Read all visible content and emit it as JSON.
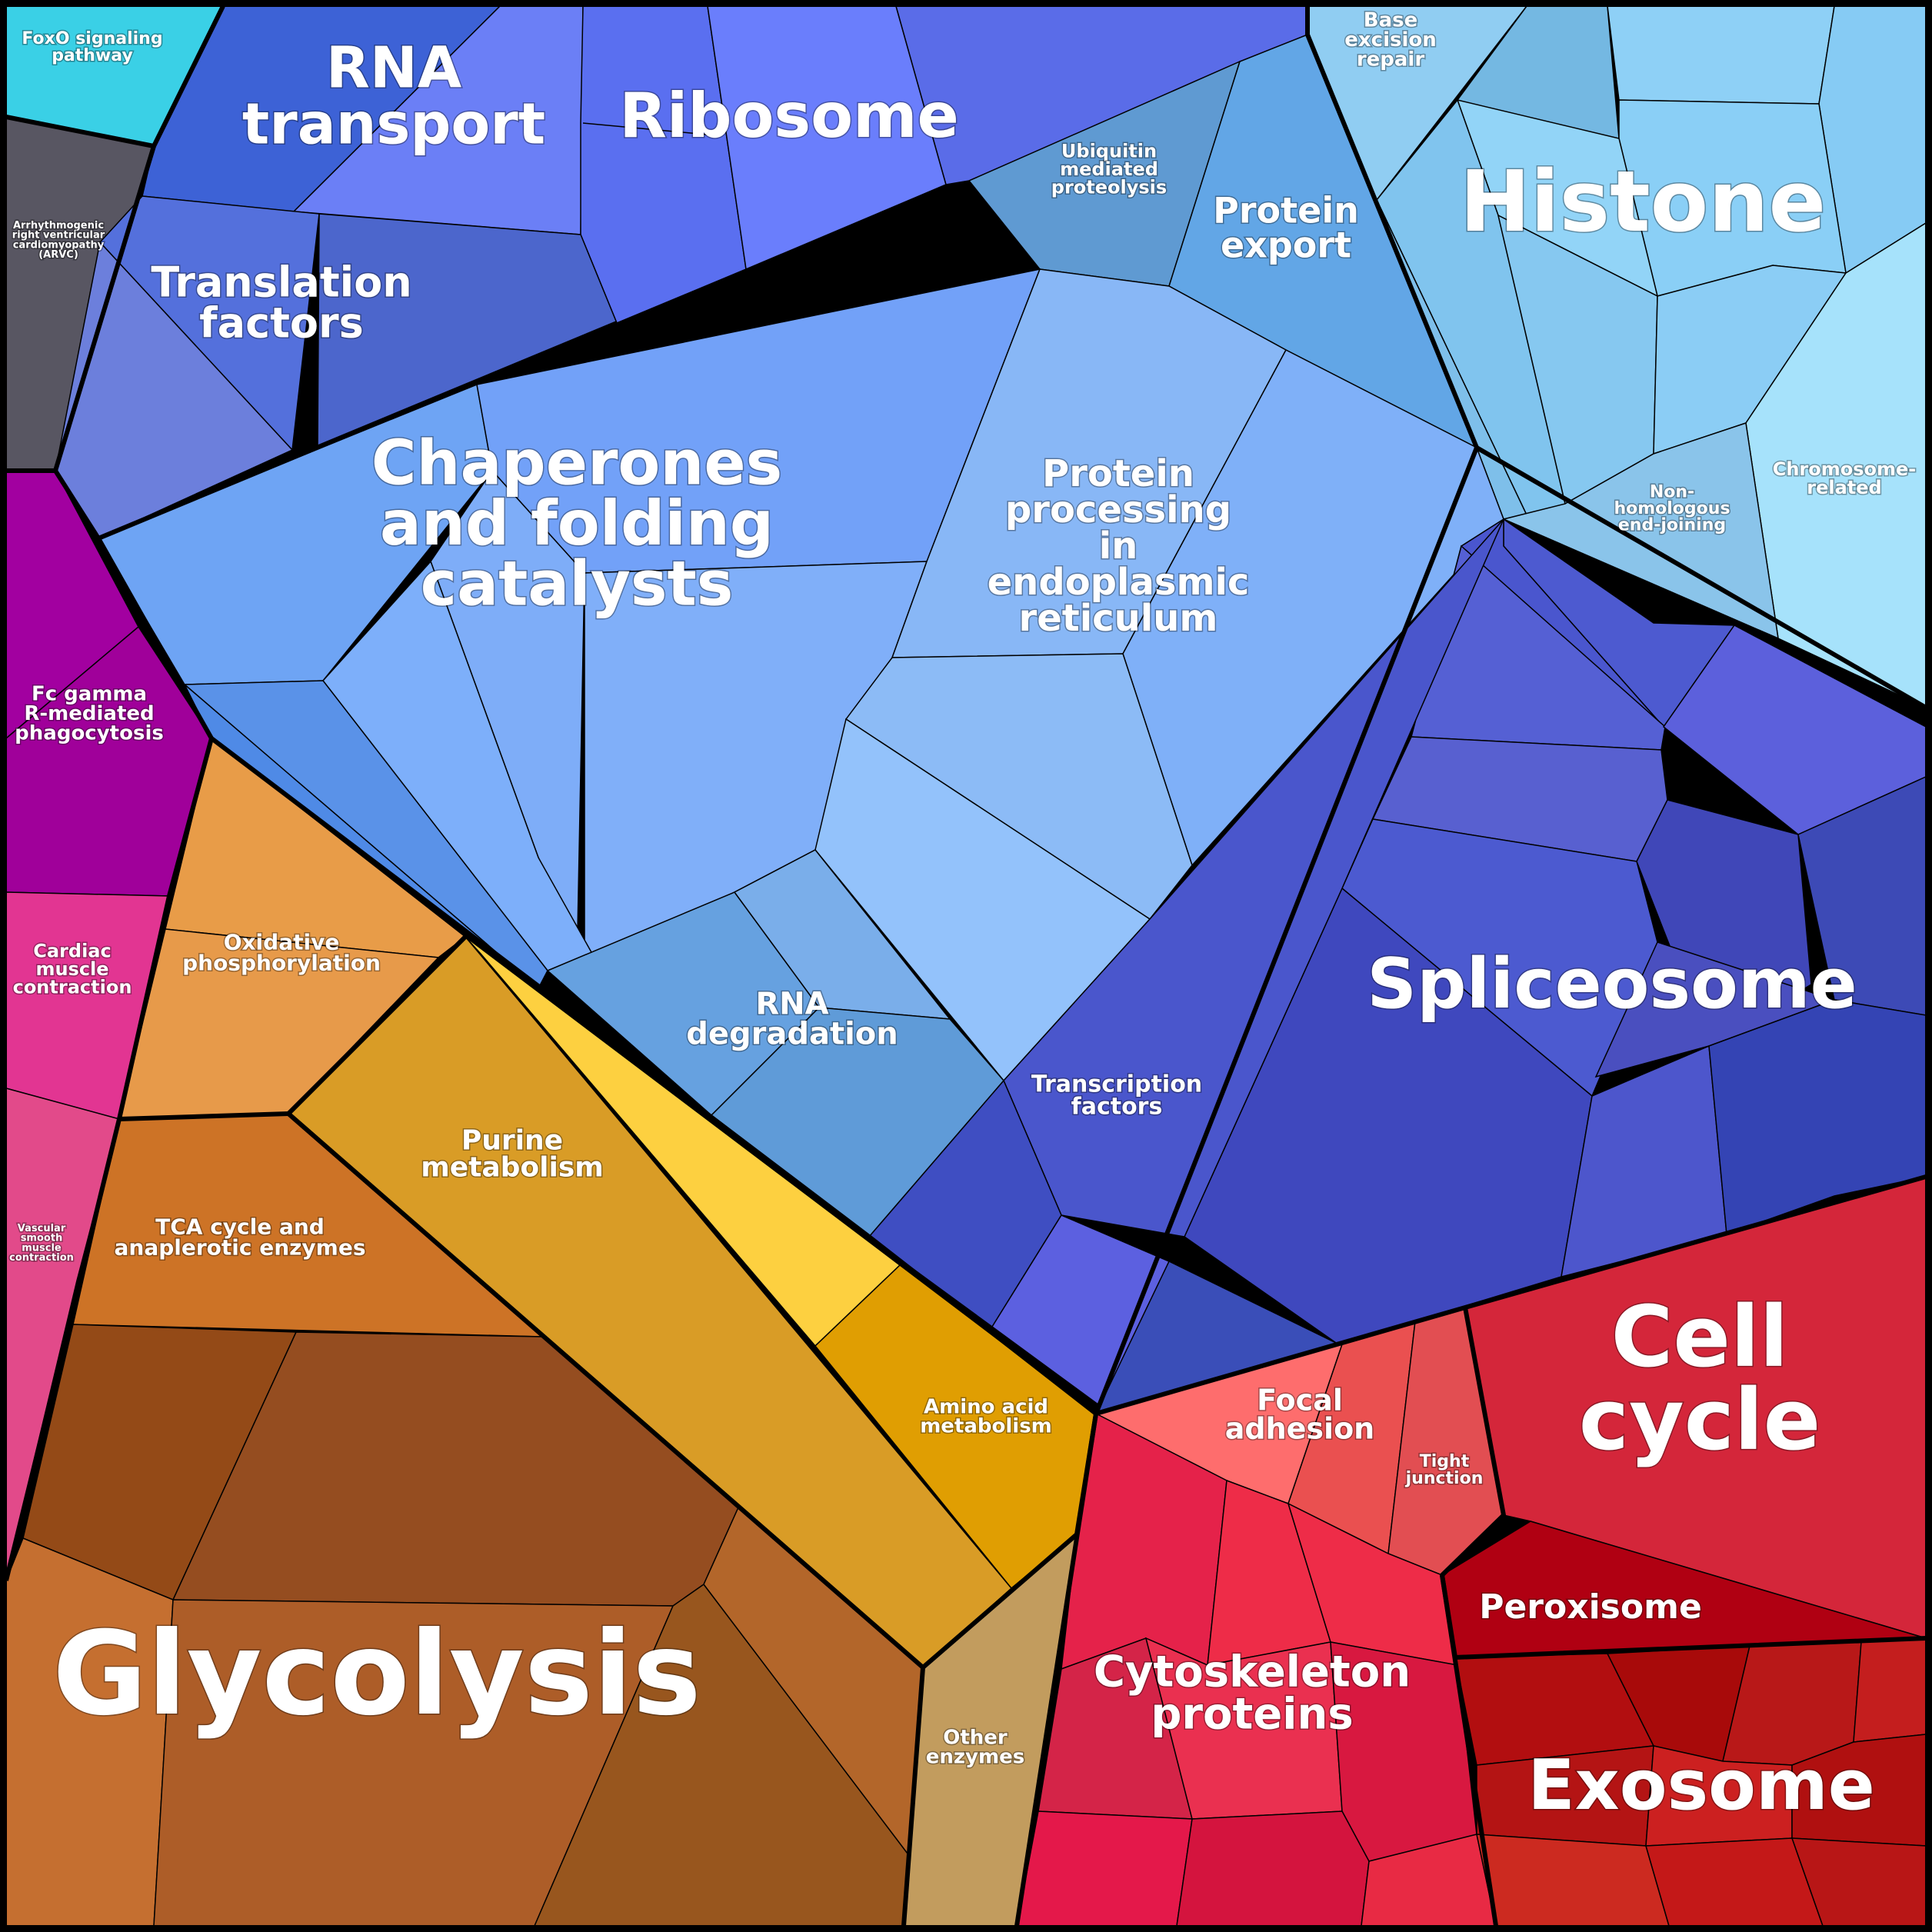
{
  "chart_data": {
    "type": "voronoi-treemap",
    "categories": [
      {
        "id": "foxo",
        "label": [
          "FoxO signaling",
          "pathway"
        ],
        "color": "#3ad0e6"
      },
      {
        "id": "arvc",
        "label": [
          "Arrhythmogenic",
          "right ventricular",
          "cardiomyopathy",
          "(ARVC)"
        ],
        "color": "#585662"
      },
      {
        "id": "rna-transport",
        "label": [
          "RNA",
          "transport"
        ],
        "color": "#4a6ce0"
      },
      {
        "id": "ribosome",
        "label": [
          "Ribosome"
        ],
        "color": "#6272f0"
      },
      {
        "id": "translation-factors",
        "label": [
          "Translation",
          "factors"
        ],
        "color": "#5a72d8"
      },
      {
        "id": "ubiquitin",
        "label": [
          "Ubiquitin",
          "mediated",
          "proteolysis"
        ],
        "color": "#5f9ad2"
      },
      {
        "id": "protein-export",
        "label": [
          "Protein",
          "export"
        ],
        "color": "#62a6e6"
      },
      {
        "id": "base-excision",
        "label": [
          "Base",
          "excision",
          "repair"
        ],
        "color": "#8ecdf2"
      },
      {
        "id": "histone",
        "label": [
          "Histone"
        ],
        "color": "#82c8f2"
      },
      {
        "id": "chromosome",
        "label": [
          "Chromosome-",
          "related"
        ],
        "color": "#a6e2fb"
      },
      {
        "id": "nhej",
        "label": [
          "Non-",
          "homologous",
          "end-joining"
        ],
        "color": "#8ac4ea"
      },
      {
        "id": "chaperones",
        "label": [
          "Chaperones",
          "and folding",
          "catalysts"
        ],
        "color": "#75a3f6"
      },
      {
        "id": "protein-processing",
        "label": [
          "Protein",
          "processing",
          "in",
          "endoplasmic",
          "reticulum"
        ],
        "color": "#8ab6f6"
      },
      {
        "id": "rna-degradation",
        "label": [
          "RNA",
          "degradation"
        ],
        "color": "#64a0de"
      },
      {
        "id": "spliceosome",
        "label": [
          "Spliceosome"
        ],
        "color": "#4a58cc"
      },
      {
        "id": "transcription-factors",
        "label": [
          "Transcription",
          "factors"
        ],
        "color": "#4c5ad4"
      },
      {
        "id": "fc-gamma",
        "label": [
          "Fc gamma",
          "R-mediated",
          "phagocytosis"
        ],
        "color": "#a2009c"
      },
      {
        "id": "cardiac",
        "label": [
          "Cardiac",
          "muscle",
          "contraction"
        ],
        "color": "#e23592"
      },
      {
        "id": "vascular",
        "label": [
          "Vascular",
          "smooth",
          "muscle",
          "contraction"
        ],
        "color": "#e24a8a"
      },
      {
        "id": "oxphos",
        "label": [
          "Oxidative",
          "phosphorylation"
        ],
        "color": "#e79a48"
      },
      {
        "id": "tca",
        "label": [
          "TCA cycle and",
          "anaplerotic enzymes"
        ],
        "color": "#cd7326"
      },
      {
        "id": "purine",
        "label": [
          "Purine",
          "metabolism"
        ],
        "color": "#d99c26"
      },
      {
        "id": "amino-acid",
        "label": [
          "Amino acid",
          "metabolism"
        ],
        "color": "#e09e02"
      },
      {
        "id": "glycolysis",
        "label": [
          "Glycolysis"
        ],
        "color": "#a8592a"
      },
      {
        "id": "other-enzymes",
        "label": [
          "Other",
          "enzymes"
        ],
        "color": "#c29c5e"
      },
      {
        "id": "focal-adhesion",
        "label": [
          "Focal",
          "adhesion"
        ],
        "color": "#ee5858"
      },
      {
        "id": "tight-junction",
        "label": [
          "Tight",
          "junction"
        ],
        "color": "#e24e52"
      },
      {
        "id": "cell-cycle",
        "label": [
          "Cell",
          "cycle"
        ],
        "color": "#d4283c"
      },
      {
        "id": "peroxisome",
        "label": [
          "Peroxisome"
        ],
        "color": "#b00012"
      },
      {
        "id": "cytoskeleton",
        "label": [
          "Cytoskeleton",
          "proteins"
        ],
        "color": "#e42648"
      },
      {
        "id": "exosome",
        "label": [
          "Exosome"
        ],
        "color": "#b81818"
      }
    ]
  }
}
